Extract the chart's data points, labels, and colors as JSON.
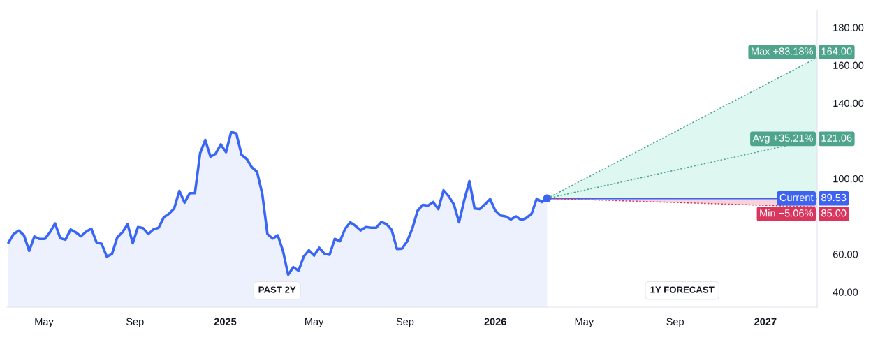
{
  "chart_data": {
    "type": "line",
    "xlim": [
      "2024-03-12",
      "2027-03-12"
    ],
    "xticks": [
      {
        "value": "2024-05-01",
        "label": "May"
      },
      {
        "value": "2024-09-01",
        "label": "Sep"
      },
      {
        "value": "2025-01-01",
        "label": "2025"
      },
      {
        "value": "2025-05-01",
        "label": "May"
      },
      {
        "value": "2025-09-01",
        "label": "Sep"
      },
      {
        "value": "2026-01-01",
        "label": "2026"
      },
      {
        "value": "2026-05-01",
        "label": "May"
      },
      {
        "value": "2026-09-01",
        "label": "Sep"
      },
      {
        "value": "2027-01-01",
        "label": "2027"
      }
    ],
    "ylim": [
      32,
      189
    ],
    "yticks": [
      {
        "value": 40,
        "label": "40.00"
      },
      {
        "value": 60,
        "label": "60.00"
      },
      {
        "value": 100,
        "label": "100.00"
      },
      {
        "value": 140,
        "label": "140.00"
      },
      {
        "value": 160,
        "label": "160.00"
      },
      {
        "value": 180,
        "label": "180.00"
      }
    ],
    "grid": false,
    "legend": "right",
    "annotations": [
      "PAST 2Y",
      "1Y FORECAST"
    ],
    "series": [
      {
        "type": "area",
        "color": "#3a66f5",
        "x": [
          "2024-03-14",
          "2024-03-21",
          "2024-03-28",
          "2024-04-04",
          "2024-04-11",
          "2024-04-18",
          "2024-04-25",
          "2024-05-02",
          "2024-05-09",
          "2024-05-16",
          "2024-05-23",
          "2024-05-30",
          "2024-06-06",
          "2024-06-13",
          "2024-06-20",
          "2024-06-27",
          "2024-07-04",
          "2024-07-11",
          "2024-07-18",
          "2024-07-25",
          "2024-08-01",
          "2024-08-08",
          "2024-08-15",
          "2024-08-22",
          "2024-08-29",
          "2024-09-05",
          "2024-09-12",
          "2024-09-19",
          "2024-09-26",
          "2024-10-03",
          "2024-10-10",
          "2024-10-17",
          "2024-10-24",
          "2024-10-31",
          "2024-11-07",
          "2024-11-14",
          "2024-11-21",
          "2024-11-28",
          "2024-12-05",
          "2024-12-12",
          "2024-12-19",
          "2024-12-26",
          "2025-01-02",
          "2025-01-09",
          "2025-01-16",
          "2025-01-23",
          "2025-01-30",
          "2025-02-06",
          "2025-02-13",
          "2025-02-20",
          "2025-02-27",
          "2025-03-06",
          "2025-03-13",
          "2025-03-20",
          "2025-03-27",
          "2025-04-03",
          "2025-04-10",
          "2025-04-17",
          "2025-04-24",
          "2025-05-01",
          "2025-05-08",
          "2025-05-15",
          "2025-05-22",
          "2025-05-29",
          "2025-06-05",
          "2025-06-12",
          "2025-06-19",
          "2025-06-26",
          "2025-07-03",
          "2025-07-10",
          "2025-07-17",
          "2025-07-24",
          "2025-07-31",
          "2025-08-07",
          "2025-08-14",
          "2025-08-21",
          "2025-08-28",
          "2025-09-04",
          "2025-09-11",
          "2025-09-18",
          "2025-09-25",
          "2025-10-02",
          "2025-10-09",
          "2025-10-16",
          "2025-10-23",
          "2025-10-30",
          "2025-11-06",
          "2025-11-13",
          "2025-11-20",
          "2025-11-27",
          "2025-12-04",
          "2025-12-11",
          "2025-12-18",
          "2025-12-25",
          "2026-01-01",
          "2026-01-08",
          "2026-01-15",
          "2026-01-22",
          "2026-01-29",
          "2026-02-05",
          "2026-02-12",
          "2026-02-19",
          "2026-02-26",
          "2026-03-05",
          "2026-03-12"
        ],
        "values": [
          66.1,
          70.7,
          72.5,
          70.0,
          61.8,
          69.4,
          68.1,
          68.1,
          71.6,
          76.3,
          68.5,
          67.7,
          73.1,
          71.6,
          69.5,
          72.0,
          73.5,
          66.3,
          65.5,
          58.7,
          60.2,
          68.9,
          71.6,
          75.9,
          65.8,
          74.4,
          73.8,
          70.7,
          73.2,
          74.0,
          79.6,
          81.4,
          84.3,
          93.5,
          87.3,
          92.3,
          92.3,
          113.4,
          120.5,
          111.6,
          113.2,
          118.1,
          114.0,
          124.7,
          123.9,
          112.6,
          110.4,
          106.0,
          103.6,
          91.9,
          70.7,
          68.3,
          70.0,
          61.8,
          49.2,
          53.2,
          51.3,
          58.7,
          62.1,
          59.3,
          63.4,
          60.3,
          59.7,
          68.1,
          66.9,
          73.5,
          76.9,
          75.0,
          72.6,
          74.4,
          74.0,
          74.0,
          77.1,
          75.9,
          72.8,
          62.8,
          63.0,
          66.9,
          73.8,
          83.1,
          86.1,
          85.7,
          87.6,
          83.9,
          93.8,
          90.7,
          86.4,
          76.9,
          88.6,
          98.7,
          84.2,
          83.9,
          86.4,
          89.2,
          83.1,
          80.5,
          80.0,
          78.4,
          80.0,
          78.1,
          79.2,
          81.4,
          89.4,
          87.6,
          89.53
        ]
      },
      {
        "name": "Max +83.18%",
        "color": "#4fa58c",
        "line_style": "dotted",
        "x": [
          "2026-03-12",
          "2027-03-12"
        ],
        "values": [
          89.53,
          164
        ],
        "lower": [
          89.53,
          89.53
        ],
        "upper": [
          89.53,
          164
        ],
        "value_labels": [
          null,
          "164.00"
        ]
      },
      {
        "name": "Avg +35.21%",
        "color": "#4fa58c",
        "line_style": "dotted",
        "x": [
          "2026-03-12",
          "2027-03-12"
        ],
        "values": [
          89.53,
          121.06
        ],
        "value_labels": [
          null,
          "121.06"
        ]
      },
      {
        "name": "Current",
        "color": "#3d63f0",
        "line_style": "solid",
        "x": [
          "2026-03-12",
          "2027-03-12"
        ],
        "values": [
          89.53,
          89.53
        ],
        "value_labels": [
          null,
          "89.53"
        ]
      },
      {
        "name": "Min −5.06%",
        "color": "#d9365e",
        "line_style": "dotted",
        "x": [
          "2026-03-12",
          "2027-03-12"
        ],
        "values": [
          89.53,
          85
        ],
        "lower": [
          89.53,
          85
        ],
        "upper": [
          89.53,
          89.53
        ],
        "value_labels": [
          null,
          "85.00"
        ]
      },
      {
        "type": "scatter",
        "color": "#3d63f0",
        "marker": "circle",
        "x": [
          "2026-03-12"
        ],
        "values": [
          89.53
        ]
      }
    ]
  }
}
